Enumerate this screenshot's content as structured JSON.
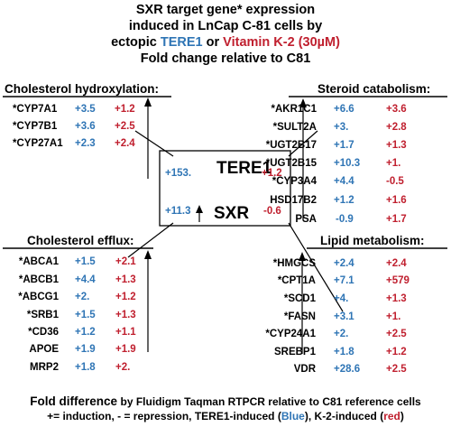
{
  "title": {
    "line1": "SXR target gene* expression",
    "line2": "induced in LnCap C-81 cells by",
    "line3_a": "ectopic",
    "line3_b": "TERE1",
    "line3_c": "or",
    "line3_d": "Vitamin K-2 (30µM)",
    "line4": "Fold change relative to C81"
  },
  "center": {
    "tere1_label": "TERE1",
    "tere1_blue": "+153.",
    "tere1_red": "+1.2",
    "sxr_label": "SXR",
    "sxr_blue": "+11.3",
    "sxr_red": "-0.6"
  },
  "panels": {
    "cholesterol_hydroxylation": {
      "heading": "Cholesterol hydroxylation:",
      "rows": [
        {
          "gene": "*CYP7A1",
          "blue": "+3.5",
          "red": "+1.2"
        },
        {
          "gene": "*CYP7B1",
          "blue": "+3.6",
          "red": "+2.5"
        },
        {
          "gene": "*CYP27A1",
          "blue": "+2.3",
          "red": "+2.4"
        }
      ]
    },
    "steroid_catabolism": {
      "heading": "Steroid catabolism:",
      "rows": [
        {
          "gene": "*AKR1C1",
          "blue": "+6.6",
          "red": "+3.6"
        },
        {
          "gene": "*SULT2A",
          "blue": "+3.",
          "red": "+2.8"
        },
        {
          "gene": "*UGT2B17",
          "blue": "+1.7",
          "red": "+1.3"
        },
        {
          "gene": "*UGT2B15",
          "blue": "+10.3",
          "red": "+1."
        },
        {
          "gene": "*CYP3A4",
          "blue": "+4.4",
          "red": "-0.5"
        },
        {
          "gene": "HSD17B2",
          "blue": "+1.2",
          "red": "+1.6"
        },
        {
          "gene": "PSA",
          "blue": "-0.9",
          "red": "+1.7"
        }
      ]
    },
    "cholesterol_efflux": {
      "heading": "Cholesterol efflux:",
      "rows": [
        {
          "gene": "*ABCA1",
          "blue": "+1.5",
          "red": "+2.1"
        },
        {
          "gene": "*ABCB1",
          "blue": "+4.4",
          "red": "+1.3"
        },
        {
          "gene": "*ABCG1",
          "blue": "+2.",
          "red": "+1.2"
        },
        {
          "gene": "*SRB1",
          "blue": "+1.5",
          "red": "+1.3"
        },
        {
          "gene": "*CD36",
          "blue": "+1.2",
          "red": "+1.1"
        },
        {
          "gene": "APOE",
          "blue": "+1.9",
          "red": "+1.9"
        },
        {
          "gene": "MRP2",
          "blue": "+1.8",
          "red": "+2."
        }
      ]
    },
    "lipid_metabolism": {
      "heading": "Lipid metabolism:",
      "rows": [
        {
          "gene": "*HMGCS",
          "blue": "+2.4",
          "red": "+2.4"
        },
        {
          "gene": "*CPT1A",
          "blue": "+7.1",
          "red": "+579"
        },
        {
          "gene": "*SCD1",
          "blue": "+4.",
          "red": "+1.3"
        },
        {
          "gene": "*FASN",
          "blue": "+3.1",
          "red": "+1."
        },
        {
          "gene": "*CYP24A1",
          "blue": "+2.",
          "red": "+2.5"
        },
        {
          "gene": "SREBP1",
          "blue": "+1.8",
          "red": "+1.2"
        },
        {
          "gene": "VDR",
          "blue": "+28.6",
          "red": "+2.5"
        }
      ]
    }
  },
  "footer": {
    "line1_a": "Fold difference",
    "line1_b": "by Fluidigm Taqman RTPCR relative to C81 reference cells",
    "line2_a": "+= induction, - = repression, TERE1-induced (",
    "line2_b": "Blue",
    "line2_c": "), K-2-induced (",
    "line2_d": "red",
    "line2_e": ")"
  },
  "colors": {
    "tere1": "#2f75b5",
    "vitamin_k2": "#c0202f"
  }
}
